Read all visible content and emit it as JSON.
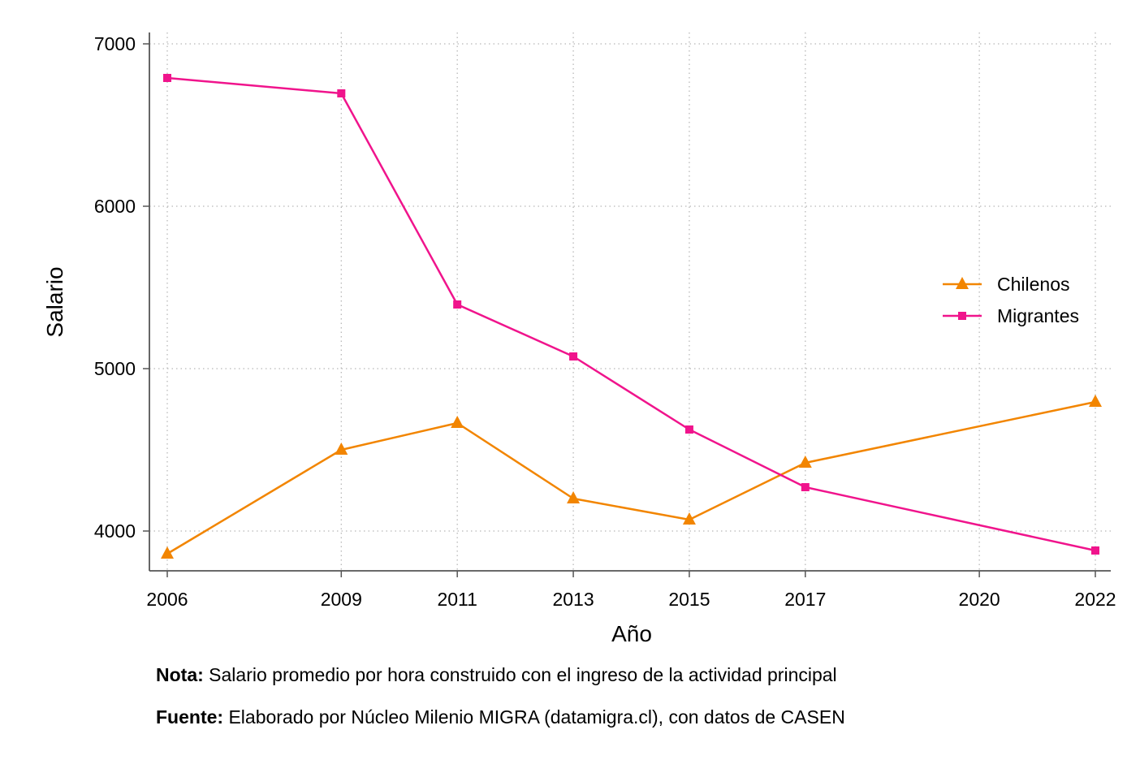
{
  "chart_data": {
    "type": "line",
    "x": [
      2006,
      2009,
      2011,
      2013,
      2015,
      2017,
      2022
    ],
    "x_ticks": [
      2006,
      2009,
      2011,
      2013,
      2015,
      2017,
      2020,
      2022
    ],
    "xlim": [
      2005.7,
      2022.3
    ],
    "ylim": [
      3750,
      7000
    ],
    "y_ticks": [
      4000,
      5000,
      6000,
      7000
    ],
    "xlabel": "Año",
    "ylabel": "Salario",
    "grid": true,
    "legend_position": "right",
    "series": [
      {
        "name": "Chilenos",
        "color": "#F28500",
        "marker": "triangle",
        "values": [
          3860,
          4500,
          4665,
          4200,
          4070,
          4420,
          4795
        ]
      },
      {
        "name": "Migrantes",
        "color": "#F0148C",
        "marker": "square",
        "values": [
          6790,
          6695,
          5395,
          5075,
          4625,
          4270,
          3880
        ]
      }
    ]
  },
  "notes": {
    "note_label": "Nota:",
    "note_text": " Salario promedio por hora construido con el ingreso de la actividad principal",
    "source_label": "Fuente:",
    "source_text": " Elaborado por Núcleo Milenio MIGRA (datamigra.cl), con datos de CASEN"
  }
}
